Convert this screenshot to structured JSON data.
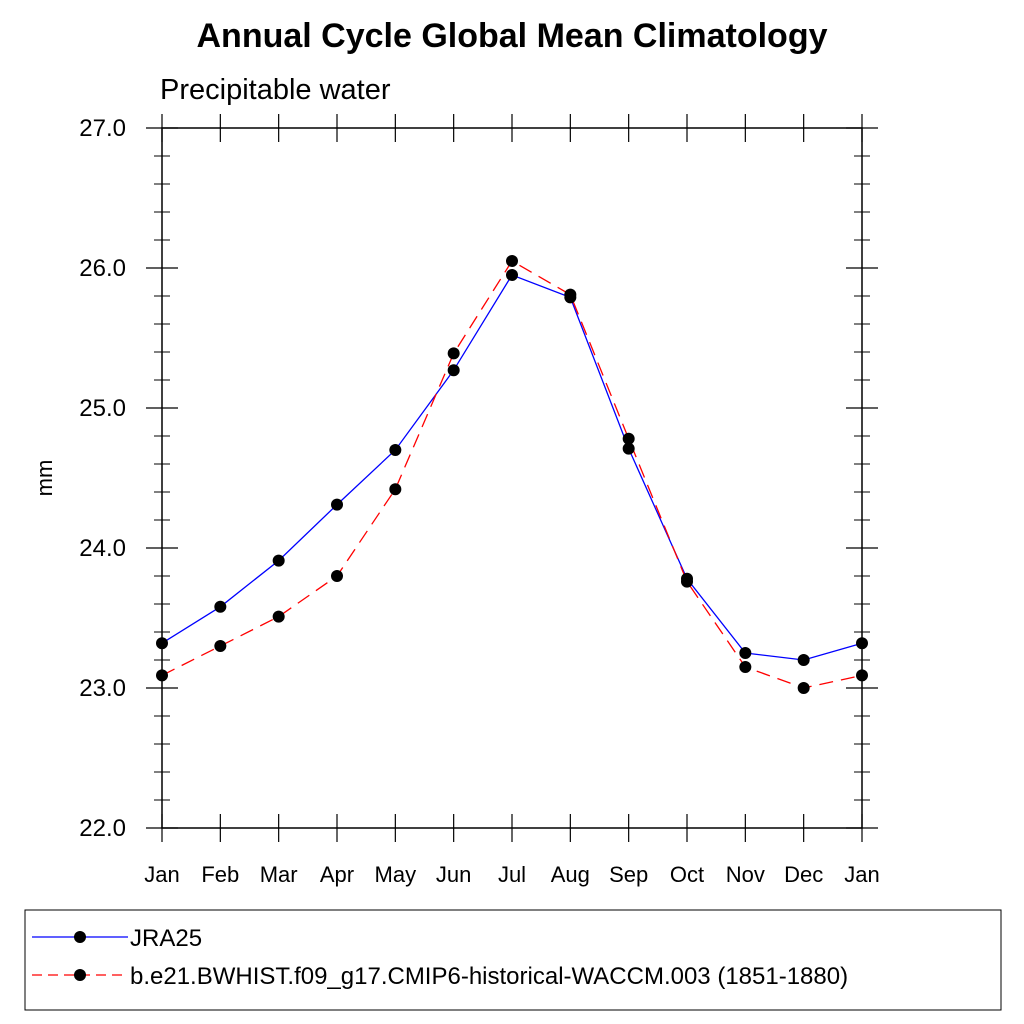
{
  "chart_data": {
    "type": "line",
    "title": "Annual Cycle Global Mean Climatology",
    "subtitle": "Precipitable water",
    "xlabel": "",
    "ylabel": "mm",
    "ylim": [
      22.0,
      27.0
    ],
    "yticks": [
      "22.0",
      "23.0",
      "24.0",
      "25.0",
      "26.0",
      "27.0"
    ],
    "categories": [
      "Jan",
      "Feb",
      "Mar",
      "Apr",
      "May",
      "Jun",
      "Jul",
      "Aug",
      "Sep",
      "Oct",
      "Nov",
      "Dec",
      "Jan"
    ],
    "legend_position": "bottom",
    "grid": false,
    "series": [
      {
        "name": "JRA25",
        "color": "#0000ff",
        "line_style": "solid",
        "marker": "filled-circle",
        "values": [
          23.32,
          23.58,
          23.91,
          24.31,
          24.7,
          25.27,
          25.95,
          25.79,
          24.71,
          23.78,
          23.25,
          23.2,
          23.32
        ]
      },
      {
        "name": "b.e21.BWHIST.f09_g17.CMIP6-historical-WACCM.003 (1851-1880)",
        "color": "#ff0000",
        "line_style": "dashed",
        "marker": "filled-circle",
        "values": [
          23.09,
          23.3,
          23.51,
          23.8,
          24.42,
          25.39,
          26.05,
          25.81,
          24.78,
          23.76,
          23.15,
          23.0,
          23.09
        ]
      }
    ]
  }
}
